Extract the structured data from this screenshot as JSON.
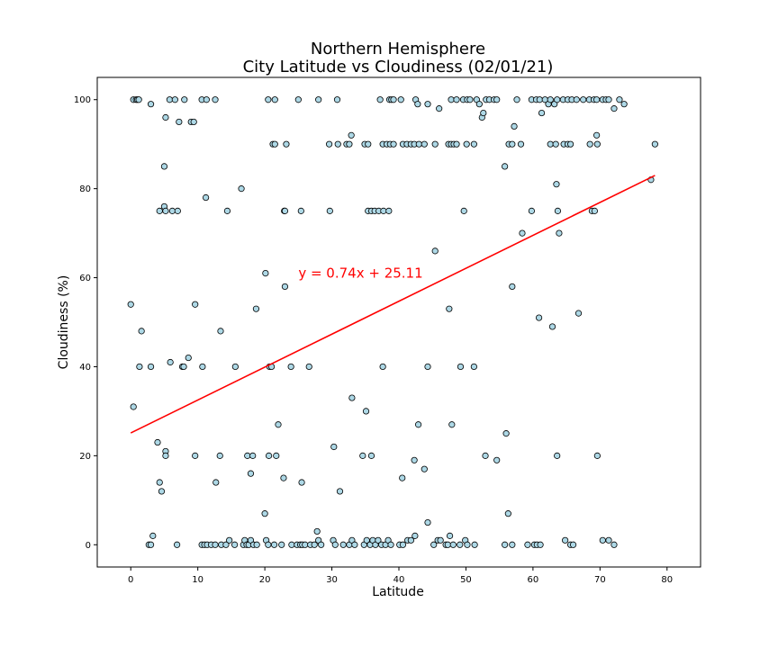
{
  "chart_data": {
    "type": "scatter",
    "title": "Northern Hemisphere",
    "subtitle": "City Latitude vs Cloudiness (02/01/21)",
    "xlabel": "Latitude",
    "ylabel": "Cloudiness (%)",
    "xlim": [
      -5,
      85
    ],
    "ylim": [
      -5,
      105
    ],
    "xticks": [
      0,
      10,
      20,
      30,
      40,
      50,
      60,
      70,
      80
    ],
    "yticks": [
      0,
      20,
      40,
      60,
      80,
      100
    ],
    "grid": false,
    "marker_color": "#add8e6",
    "marker_edge": "#000000",
    "regression": {
      "label": "y = 0.74x + 25.11",
      "slope": 0.74,
      "intercept": 25.11,
      "x_range": [
        0,
        78.2
      ],
      "color": "#ff0000",
      "label_at": [
        25,
        60
      ]
    },
    "points": [
      [
        0.4,
        100
      ],
      [
        0.8,
        100
      ],
      [
        1.0,
        100
      ],
      [
        1.2,
        100
      ],
      [
        3.0,
        99
      ],
      [
        5.2,
        96
      ],
      [
        5.8,
        100
      ],
      [
        6.6,
        100
      ],
      [
        7.2,
        95
      ],
      [
        8.0,
        100
      ],
      [
        9.0,
        95
      ],
      [
        9.4,
        95
      ],
      [
        10.6,
        100
      ],
      [
        11.3,
        100
      ],
      [
        12.6,
        100
      ],
      [
        20.5,
        100
      ],
      [
        21.5,
        100
      ],
      [
        25.0,
        100
      ],
      [
        28.0,
        100
      ],
      [
        30.8,
        100
      ],
      [
        37.2,
        100
      ],
      [
        38.6,
        100
      ],
      [
        38.9,
        100
      ],
      [
        39.2,
        100
      ],
      [
        40.3,
        100
      ],
      [
        42.5,
        100
      ],
      [
        42.8,
        99
      ],
      [
        44.3,
        99
      ],
      [
        46.0,
        98
      ],
      [
        47.8,
        100
      ],
      [
        48.6,
        100
      ],
      [
        49.6,
        100
      ],
      [
        50.2,
        100
      ],
      [
        50.6,
        100
      ],
      [
        51.6,
        100
      ],
      [
        52.0,
        99
      ],
      [
        52.4,
        96
      ],
      [
        52.6,
        97
      ],
      [
        53.0,
        100
      ],
      [
        53.5,
        100
      ],
      [
        54.2,
        100
      ],
      [
        54.6,
        100
      ],
      [
        57.2,
        94
      ],
      [
        57.6,
        100
      ],
      [
        59.8,
        100
      ],
      [
        60.5,
        100
      ],
      [
        61.0,
        100
      ],
      [
        61.3,
        97
      ],
      [
        61.8,
        100
      ],
      [
        62.3,
        99
      ],
      [
        62.6,
        100
      ],
      [
        63.2,
        99
      ],
      [
        63.6,
        100
      ],
      [
        64.5,
        100
      ],
      [
        65.2,
        100
      ],
      [
        65.8,
        100
      ],
      [
        66.5,
        100
      ],
      [
        67.5,
        100
      ],
      [
        68.4,
        100
      ],
      [
        69.1,
        100
      ],
      [
        69.5,
        100
      ],
      [
        70.4,
        100
      ],
      [
        70.9,
        100
      ],
      [
        71.3,
        100
      ],
      [
        72.1,
        98
      ],
      [
        72.9,
        100
      ],
      [
        73.6,
        99
      ],
      [
        21.2,
        90
      ],
      [
        21.5,
        90
      ],
      [
        23.2,
        90
      ],
      [
        29.6,
        90
      ],
      [
        30.9,
        90
      ],
      [
        32.2,
        90
      ],
      [
        32.6,
        90
      ],
      [
        32.9,
        92
      ],
      [
        34.9,
        90
      ],
      [
        35.4,
        90
      ],
      [
        37.6,
        90
      ],
      [
        38.2,
        90
      ],
      [
        38.7,
        90
      ],
      [
        39.2,
        90
      ],
      [
        40.6,
        90
      ],
      [
        41.2,
        90
      ],
      [
        41.8,
        90
      ],
      [
        42.3,
        90
      ],
      [
        43.0,
        90
      ],
      [
        43.8,
        90
      ],
      [
        45.4,
        90
      ],
      [
        47.4,
        90
      ],
      [
        47.8,
        90
      ],
      [
        48.2,
        90
      ],
      [
        48.6,
        90
      ],
      [
        50.1,
        90
      ],
      [
        51.2,
        90
      ],
      [
        56.4,
        90
      ],
      [
        56.9,
        90
      ],
      [
        58.2,
        90
      ],
      [
        62.6,
        90
      ],
      [
        63.4,
        90
      ],
      [
        64.6,
        90
      ],
      [
        65.2,
        90
      ],
      [
        65.6,
        90
      ],
      [
        68.5,
        90
      ],
      [
        69.5,
        92
      ],
      [
        69.6,
        90
      ],
      [
        78.2,
        90
      ],
      [
        5.0,
        85
      ],
      [
        55.8,
        85
      ],
      [
        4.3,
        75
      ],
      [
        5.0,
        76
      ],
      [
        5.2,
        75
      ],
      [
        6.2,
        75
      ],
      [
        7.0,
        75
      ],
      [
        11.2,
        78
      ],
      [
        14.4,
        75
      ],
      [
        16.5,
        80
      ],
      [
        22.9,
        75
      ],
      [
        23.0,
        75
      ],
      [
        25.4,
        75
      ],
      [
        29.7,
        75
      ],
      [
        35.4,
        75
      ],
      [
        35.9,
        75
      ],
      [
        36.4,
        75
      ],
      [
        37.0,
        75
      ],
      [
        37.7,
        75
      ],
      [
        38.5,
        75
      ],
      [
        49.7,
        75
      ],
      [
        59.8,
        75
      ],
      [
        63.5,
        81
      ],
      [
        63.7,
        75
      ],
      [
        63.9,
        70
      ],
      [
        68.8,
        75
      ],
      [
        69.2,
        75
      ],
      [
        58.4,
        70
      ],
      [
        77.6,
        82
      ],
      [
        0.0,
        54
      ],
      [
        1.6,
        48
      ],
      [
        9.6,
        54
      ],
      [
        13.4,
        48
      ],
      [
        18.7,
        53
      ],
      [
        20.1,
        61
      ],
      [
        23.0,
        58
      ],
      [
        45.4,
        66
      ],
      [
        47.5,
        53
      ],
      [
        56.9,
        58
      ],
      [
        60.9,
        51
      ],
      [
        62.9,
        49
      ],
      [
        66.8,
        52
      ],
      [
        0.4,
        31
      ],
      [
        1.3,
        40
      ],
      [
        3.0,
        40
      ],
      [
        5.9,
        41
      ],
      [
        7.7,
        40
      ],
      [
        7.9,
        40
      ],
      [
        8.6,
        42
      ],
      [
        10.7,
        40
      ],
      [
        15.6,
        40
      ],
      [
        20.7,
        40
      ],
      [
        21.0,
        40
      ],
      [
        23.9,
        40
      ],
      [
        26.6,
        40
      ],
      [
        37.6,
        40
      ],
      [
        44.3,
        40
      ],
      [
        49.2,
        40
      ],
      [
        51.2,
        40
      ],
      [
        4.0,
        23
      ],
      [
        4.3,
        14
      ],
      [
        4.6,
        12
      ],
      [
        5.2,
        21
      ],
      [
        5.2,
        20
      ],
      [
        9.6,
        20
      ],
      [
        12.7,
        14
      ],
      [
        13.3,
        20
      ],
      [
        17.4,
        20
      ],
      [
        17.9,
        16
      ],
      [
        18.2,
        20
      ],
      [
        20.6,
        20
      ],
      [
        21.7,
        20
      ],
      [
        22.0,
        27
      ],
      [
        22.8,
        15
      ],
      [
        25.5,
        14
      ],
      [
        30.3,
        22
      ],
      [
        31.2,
        12
      ],
      [
        33.0,
        33
      ],
      [
        34.6,
        20
      ],
      [
        35.1,
        30
      ],
      [
        35.9,
        20
      ],
      [
        40.5,
        15
      ],
      [
        42.3,
        19
      ],
      [
        42.9,
        27
      ],
      [
        43.8,
        17
      ],
      [
        47.9,
        27
      ],
      [
        52.9,
        20
      ],
      [
        54.6,
        19
      ],
      [
        56.0,
        25
      ],
      [
        56.3,
        7
      ],
      [
        63.6,
        20
      ],
      [
        69.6,
        20
      ],
      [
        20.0,
        7
      ],
      [
        3.3,
        2
      ],
      [
        2.7,
        0
      ],
      [
        3.0,
        0
      ],
      [
        6.9,
        0
      ],
      [
        10.6,
        0
      ],
      [
        11.0,
        0
      ],
      [
        11.4,
        0
      ],
      [
        12.0,
        0
      ],
      [
        12.6,
        0
      ],
      [
        13.5,
        0
      ],
      [
        14.2,
        0
      ],
      [
        14.7,
        1
      ],
      [
        15.5,
        0
      ],
      [
        16.8,
        0
      ],
      [
        17.0,
        1
      ],
      [
        17.3,
        0
      ],
      [
        17.6,
        0
      ],
      [
        17.9,
        1
      ],
      [
        18.3,
        0
      ],
      [
        18.8,
        0
      ],
      [
        20.2,
        1
      ],
      [
        20.5,
        0
      ],
      [
        21.4,
        0
      ],
      [
        22.5,
        0
      ],
      [
        24.0,
        0
      ],
      [
        24.8,
        0
      ],
      [
        25.3,
        0
      ],
      [
        25.6,
        0
      ],
      [
        26.0,
        0
      ],
      [
        26.8,
        0
      ],
      [
        27.4,
        0
      ],
      [
        27.8,
        3
      ],
      [
        28.0,
        1
      ],
      [
        28.4,
        0
      ],
      [
        30.2,
        1
      ],
      [
        30.5,
        0
      ],
      [
        31.7,
        0
      ],
      [
        32.6,
        0
      ],
      [
        33.0,
        1
      ],
      [
        33.4,
        0
      ],
      [
        34.8,
        0
      ],
      [
        35.2,
        1
      ],
      [
        35.7,
        0
      ],
      [
        36.1,
        1
      ],
      [
        36.5,
        0
      ],
      [
        36.9,
        1
      ],
      [
        37.4,
        0
      ],
      [
        38.0,
        0
      ],
      [
        38.4,
        1
      ],
      [
        38.8,
        0
      ],
      [
        40.1,
        0
      ],
      [
        40.6,
        0
      ],
      [
        41.3,
        1
      ],
      [
        41.8,
        1
      ],
      [
        42.4,
        2
      ],
      [
        44.3,
        5
      ],
      [
        45.2,
        0
      ],
      [
        45.8,
        1
      ],
      [
        46.2,
        1
      ],
      [
        47.0,
        0
      ],
      [
        47.3,
        0
      ],
      [
        47.6,
        2
      ],
      [
        48.1,
        0
      ],
      [
        49.1,
        0
      ],
      [
        49.9,
        1
      ],
      [
        50.2,
        0
      ],
      [
        51.3,
        0
      ],
      [
        55.8,
        0
      ],
      [
        56.9,
        0
      ],
      [
        59.2,
        0
      ],
      [
        60.2,
        0
      ],
      [
        60.6,
        0
      ],
      [
        61.1,
        0
      ],
      [
        64.8,
        1
      ],
      [
        65.6,
        0
      ],
      [
        66.0,
        0
      ],
      [
        70.4,
        1
      ],
      [
        71.3,
        1
      ],
      [
        72.1,
        0
      ]
    ]
  }
}
